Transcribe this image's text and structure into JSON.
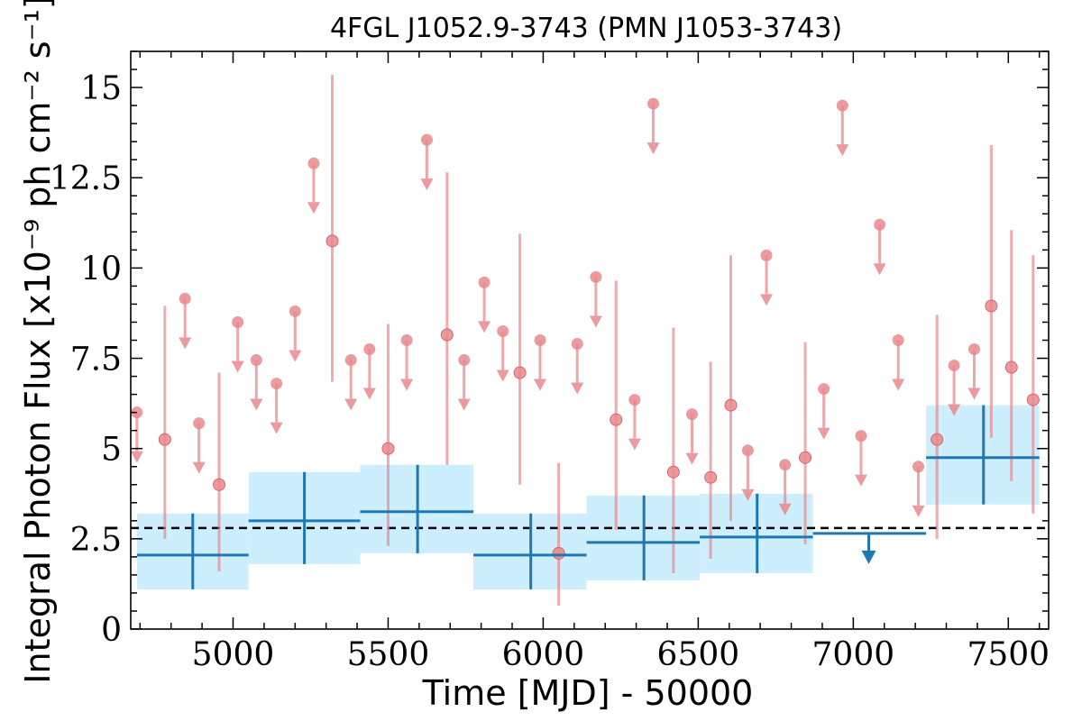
{
  "chart_data": {
    "type": "scatter",
    "title": "4FGL J1052.9-3743 (PMN J1053-3743)",
    "xlabel": "Time [MJD] - 50000",
    "ylabel": "Integral Photon Flux [x10⁻⁹ ph cm⁻² s⁻¹]",
    "xlim": [
      4670,
      7630
    ],
    "ylim": [
      0,
      16
    ],
    "x_ticks": [
      5000,
      5500,
      6000,
      6500,
      7000,
      7500
    ],
    "y_ticks": [
      0,
      2.5,
      5,
      7.5,
      10,
      12.5,
      15
    ],
    "y_tick_labels": [
      "0",
      "2.5",
      "5",
      "7.5",
      "10",
      "12.5",
      "15"
    ],
    "reference_level": 2.8,
    "colors": {
      "short_bins": "#e8888c",
      "long_bins": "#1f77b4",
      "long_bins_band": "#cdeefc"
    },
    "series": [
      {
        "kind": "short-bin-detections",
        "points": [
          {
            "x": 4780,
            "y": 5.25,
            "lo": 2.5,
            "hi": 8.95
          },
          {
            "x": 4955,
            "y": 4.0,
            "lo": 1.6,
            "hi": 7.1
          },
          {
            "x": 5320,
            "y": 10.75,
            "lo": 6.85,
            "hi": 15.35
          },
          {
            "x": 5500,
            "y": 5.0,
            "lo": 2.3,
            "hi": 8.45
          },
          {
            "x": 5690,
            "y": 8.15,
            "lo": 4.55,
            "hi": 12.65
          },
          {
            "x": 5925,
            "y": 7.1,
            "lo": 4.0,
            "hi": 10.95
          },
          {
            "x": 6050,
            "y": 2.1,
            "lo": 0.65,
            "hi": 4.6
          },
          {
            "x": 6235,
            "y": 5.8,
            "lo": 2.75,
            "hi": 9.65
          },
          {
            "x": 6420,
            "y": 4.35,
            "lo": 1.55,
            "hi": 8.35
          },
          {
            "x": 6540,
            "y": 4.2,
            "lo": 1.95,
            "hi": 7.4
          },
          {
            "x": 6605,
            "y": 6.2,
            "lo": 3.0,
            "hi": 10.35
          },
          {
            "x": 6845,
            "y": 4.75,
            "lo": 2.35,
            "hi": 7.95
          },
          {
            "x": 7270,
            "y": 5.25,
            "lo": 2.5,
            "hi": 8.7
          },
          {
            "x": 7445,
            "y": 8.95,
            "lo": 5.3,
            "hi": 13.4
          },
          {
            "x": 7510,
            "y": 7.25,
            "lo": 4.1,
            "hi": 11.05
          },
          {
            "x": 7580,
            "y": 6.35,
            "lo": 3.2,
            "hi": 10.35
          }
        ]
      },
      {
        "kind": "short-bin-upper-limits",
        "points": [
          {
            "x": 4690,
            "y": 6.0
          },
          {
            "x": 4845,
            "y": 9.15
          },
          {
            "x": 4890,
            "y": 5.7
          },
          {
            "x": 5015,
            "y": 8.5
          },
          {
            "x": 5075,
            "y": 7.45
          },
          {
            "x": 5140,
            "y": 6.8
          },
          {
            "x": 5200,
            "y": 8.8
          },
          {
            "x": 5260,
            "y": 12.9
          },
          {
            "x": 5380,
            "y": 7.45
          },
          {
            "x": 5440,
            "y": 7.75
          },
          {
            "x": 5560,
            "y": 8.0
          },
          {
            "x": 5625,
            "y": 13.55
          },
          {
            "x": 5745,
            "y": 7.45
          },
          {
            "x": 5810,
            "y": 9.6
          },
          {
            "x": 5870,
            "y": 8.25
          },
          {
            "x": 5990,
            "y": 8.0
          },
          {
            "x": 6110,
            "y": 7.9
          },
          {
            "x": 6170,
            "y": 9.75
          },
          {
            "x": 6295,
            "y": 6.35
          },
          {
            "x": 6355,
            "y": 14.55
          },
          {
            "x": 6480,
            "y": 5.95
          },
          {
            "x": 6660,
            "y": 4.95
          },
          {
            "x": 6720,
            "y": 10.35
          },
          {
            "x": 6780,
            "y": 4.55
          },
          {
            "x": 6905,
            "y": 6.65
          },
          {
            "x": 6965,
            "y": 14.5
          },
          {
            "x": 7025,
            "y": 5.35
          },
          {
            "x": 7085,
            "y": 11.2
          },
          {
            "x": 7145,
            "y": 8.0
          },
          {
            "x": 7210,
            "y": 4.5
          },
          {
            "x": 7325,
            "y": 7.3
          },
          {
            "x": 7390,
            "y": 7.75
          }
        ]
      },
      {
        "kind": "long-bins",
        "bins": [
          {
            "x0": 4690,
            "x1": 5050,
            "xc": 4870,
            "y": 2.05,
            "lo": 1.1,
            "hi": 3.2
          },
          {
            "x0": 5050,
            "x1": 5410,
            "xc": 5230,
            "y": 3.0,
            "lo": 1.8,
            "hi": 4.35
          },
          {
            "x0": 5410,
            "x1": 5775,
            "xc": 5595,
            "y": 3.25,
            "lo": 2.1,
            "hi": 4.55
          },
          {
            "x0": 5775,
            "x1": 6140,
            "xc": 5960,
            "y": 2.05,
            "lo": 1.1,
            "hi": 3.2
          },
          {
            "x0": 6140,
            "x1": 6505,
            "xc": 6325,
            "y": 2.4,
            "lo": 1.35,
            "hi": 3.7
          },
          {
            "x0": 6505,
            "x1": 6870,
            "xc": 6690,
            "y": 2.55,
            "lo": 1.55,
            "hi": 3.75
          },
          {
            "x0": 6870,
            "x1": 7235,
            "xc": 7050,
            "y": 2.65,
            "upper_limit": true
          },
          {
            "x0": 7235,
            "x1": 7600,
            "xc": 7420,
            "y": 4.75,
            "lo": 3.45,
            "hi": 6.2
          }
        ]
      }
    ]
  }
}
